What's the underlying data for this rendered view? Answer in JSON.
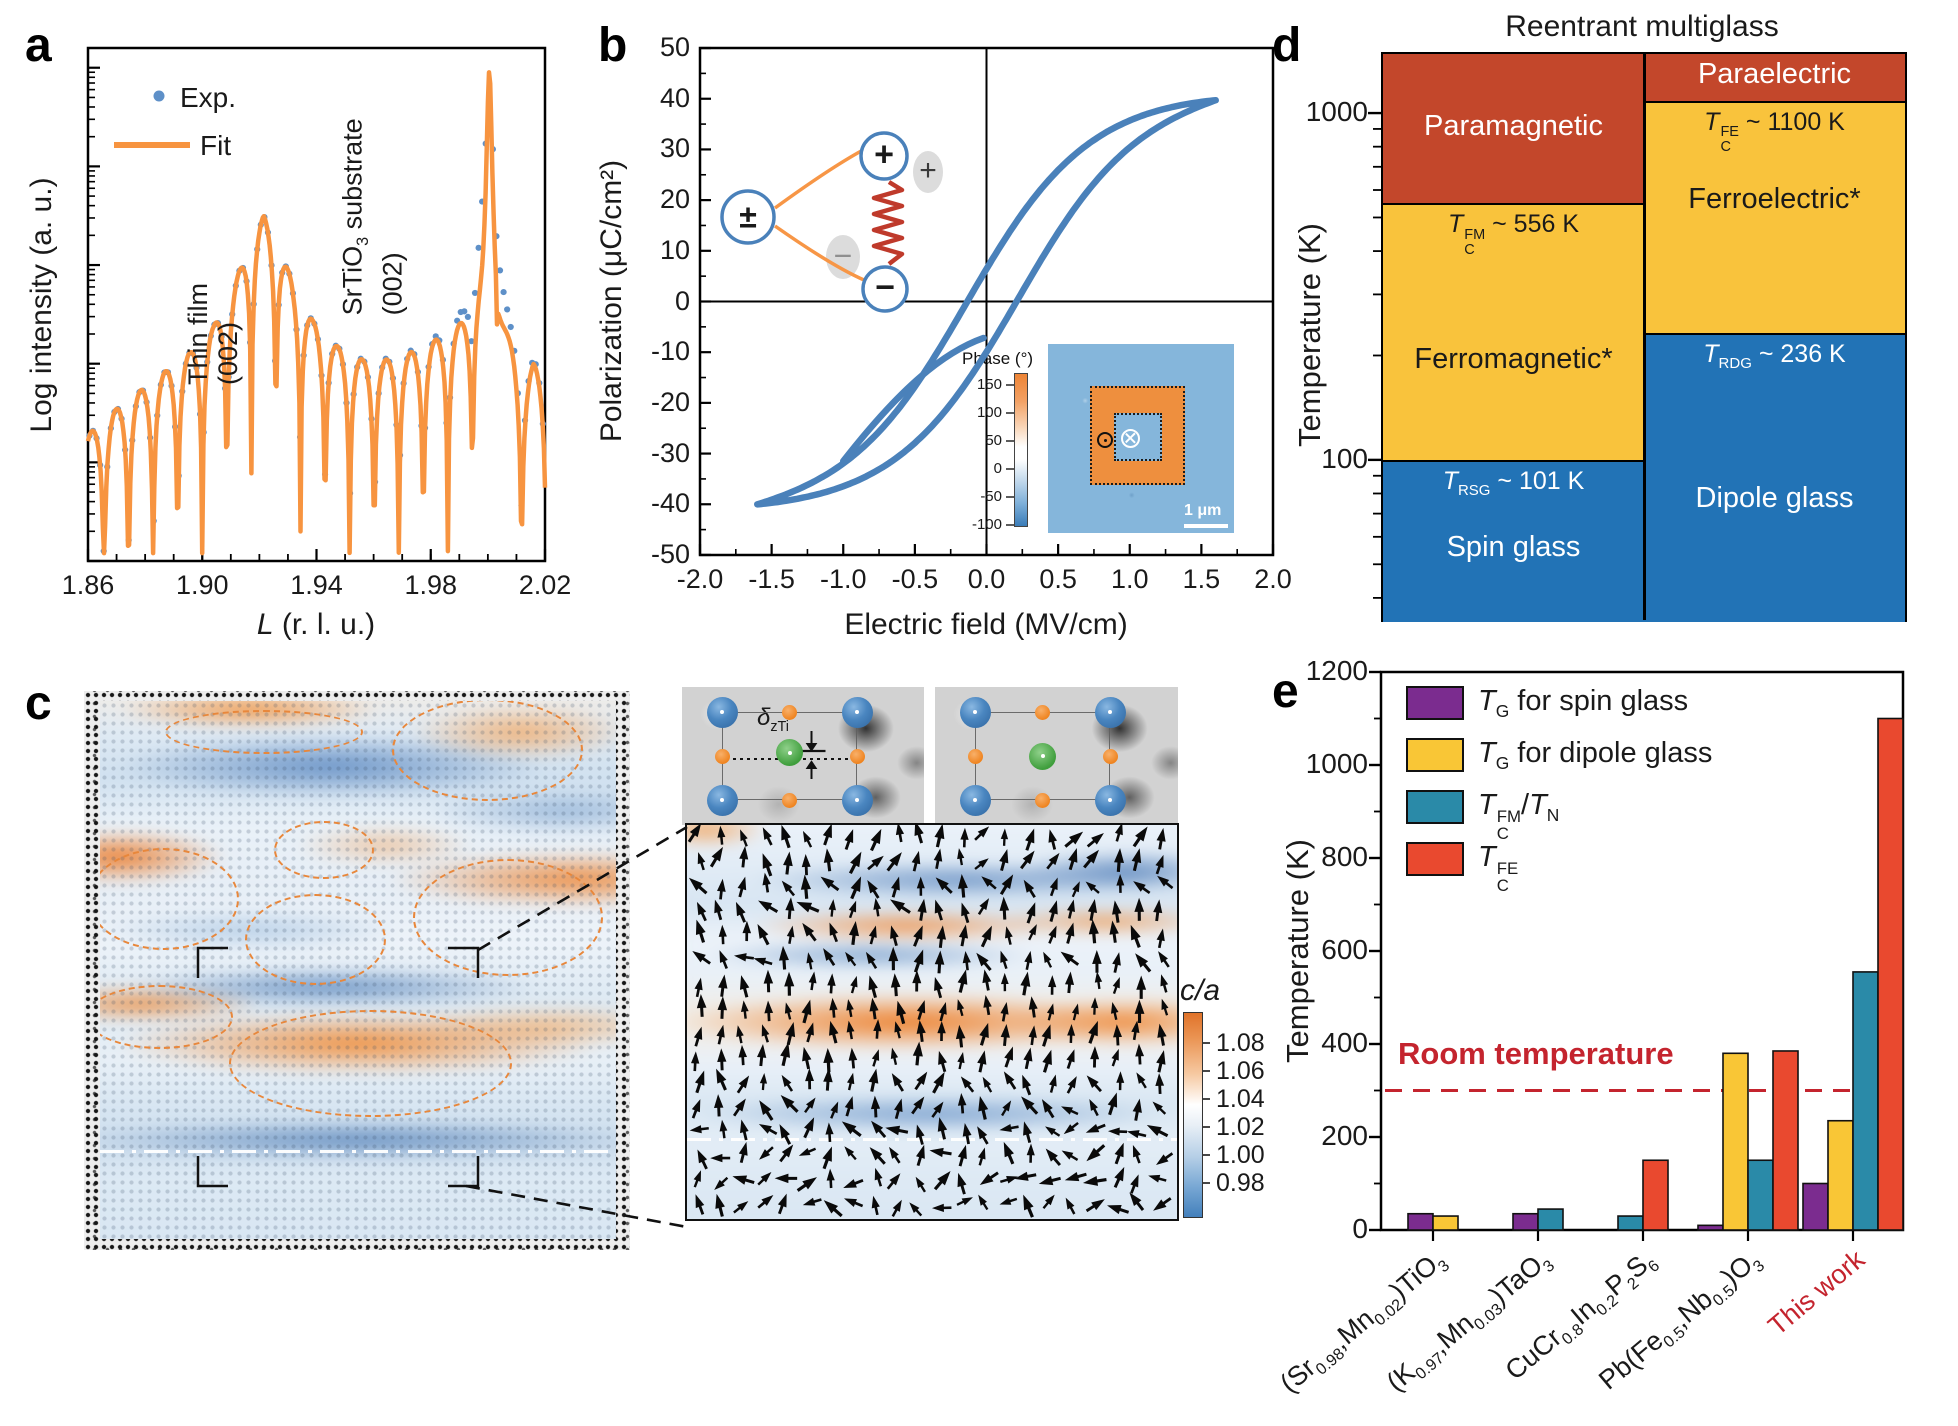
{
  "panel_labels": {
    "a": "a",
    "b": "b",
    "c": "c",
    "d": "d",
    "e": "e"
  },
  "colors": {
    "fit_orange": "#f79440",
    "exp_blue": "#5e90c8",
    "loop_blue": "#4a81ba",
    "map_orange": "#ec8233",
    "map_blue": "#3c7dbc",
    "d_red": "#c3472b",
    "d_yellow": "#f9c33c",
    "d_blue": "#2273b6",
    "e_purple": "#7b2c8f",
    "e_yellow": "#f9c636",
    "e_teal": "#2a8aa8",
    "e_red": "#e9492f",
    "room_red": "#c4242e"
  },
  "chart_data": [
    {
      "panel": "a",
      "type": "line",
      "xlabel": "L (r. l. u.)",
      "xlabel_tokens": [
        {
          "t": "L",
          "i": true
        },
        {
          "t": " (r. l. u.)"
        }
      ],
      "ylabel": "Log intensity (a. u.)",
      "xlim": [
        1.86,
        2.02
      ],
      "x_ticks": [
        "1.86",
        "1.90",
        "1.94",
        "1.98",
        "2.02"
      ],
      "y_axis": "log intensity, arbitrary units, ticks unlabeled",
      "legend": [
        {
          "label": "Exp.",
          "marker": "dot",
          "color": "#5e90c8"
        },
        {
          "label": "Fit",
          "marker": "line",
          "color": "#f79440"
        }
      ],
      "annotations": {
        "film": {
          "x": 1.9215,
          "tokens": [
            [
              {
                "t": "Thin film"
              }
            ],
            [
              {
                "t": "(002)"
              }
            ]
          ]
        },
        "substrate": {
          "x": 2.0,
          "tokens": [
            [
              {
                "t": "SrTiO"
              },
              {
                "sub": "3"
              },
              {
                "t": " substrate"
              }
            ],
            [
              {
                "t": "(002)"
              }
            ]
          ]
        }
      },
      "model": {
        "film_peak_center": 1.9215,
        "fringe_period": 0.0086,
        "fringe_depth": 1.3,
        "substrate_peak": {
          "center": 2.0005,
          "width": 0.0013,
          "height": 2.5
        },
        "exp_substrate_peak": {
          "width": 0.0028,
          "height": 2.1,
          "cap": 4.4
        },
        "envelope_log10": [
          [
            1.86,
            1.28
          ],
          [
            1.869,
            1.52
          ],
          [
            1.878,
            1.72
          ],
          [
            1.887,
            1.92
          ],
          [
            1.896,
            2.12
          ],
          [
            1.904,
            2.38
          ],
          [
            1.911,
            2.78
          ],
          [
            1.9165,
            3.22
          ],
          [
            1.9215,
            3.5
          ],
          [
            1.9265,
            3.22
          ],
          [
            1.932,
            2.8
          ],
          [
            1.939,
            2.42
          ],
          [
            1.947,
            2.18
          ],
          [
            1.956,
            2.04
          ],
          [
            1.965,
            2.04
          ],
          [
            1.974,
            2.12
          ],
          [
            1.983,
            2.25
          ],
          [
            1.991,
            2.38
          ],
          [
            1.997,
            2.48
          ],
          [
            2.003,
            2.48
          ],
          [
            2.009,
            2.05
          ],
          [
            2.0125,
            1.78
          ],
          [
            2.016,
            1.98
          ],
          [
            2.02,
            1.82
          ]
        ]
      }
    },
    {
      "panel": "b",
      "type": "line",
      "xlabel": "Electric field (MV/cm)",
      "ylabel": "Polarization (μC/cm²)",
      "xlim": [
        -2,
        2
      ],
      "ylim": [
        -50,
        50
      ],
      "x_tick_step": 0.5,
      "y_tick_step": 10,
      "loop": {
        "color": "#4a81ba",
        "saturation": 38,
        "linear_term": 2.2,
        "width": 0.82,
        "shift_up": 0.14,
        "shift_down": -0.22,
        "tip_field": 1.6,
        "virgin_start": [
          -0.02,
          -7.2
        ],
        "virgin_end": [
          -1.0,
          -31.5
        ]
      },
      "schematic": {
        "plusminus": "±",
        "plus": "+",
        "minus": "−",
        "ghost_plus": "+",
        "ghost_minus": "−"
      },
      "inset_pfm": {
        "colorbar_label": "Phase (°)",
        "colorbar_ticks": [
          "150",
          "100",
          "50",
          "0",
          "-50",
          "-100"
        ],
        "scale_bar": "1 μm",
        "symbol_out_of_plane": "dot-in-circle",
        "symbol_into_plane": "cross-in-circle"
      }
    },
    {
      "panel": "c",
      "type": "heatmap",
      "colorbar": {
        "label": "c/a",
        "label_tokens": [
          {
            "t": "c/a",
            "i": true
          }
        ],
        "ticks": [
          "1.08",
          "1.06",
          "1.04",
          "1.02",
          "1.00",
          "0.98"
        ]
      },
      "annotation_tokens": [
        {
          "t": "δ",
          "i": true
        },
        {
          "sub": "zTi"
        }
      ],
      "features": [
        "STEM c/a strain map with orange dashed ellipses marking polar nanoregions",
        "magnified polarization vector map with black arrows",
        "two perovskite unit-cell schematics over STEM background"
      ],
      "ellipses": [
        [
          65,
          9,
          194,
          40
        ],
        [
          292,
          -2,
          187,
          98
        ],
        [
          174,
          120,
          96,
          54
        ],
        [
          -12,
          147,
          147,
          98
        ],
        [
          145,
          193,
          137,
          87
        ],
        [
          313,
          158,
          186,
          113
        ],
        [
          -14,
          284,
          143,
          60
        ],
        [
          129,
          309,
          279,
          103
        ]
      ]
    },
    {
      "panel": "d",
      "type": "diagram",
      "title": "Reentrant multiglass",
      "ylabel": "Temperature (K)",
      "y_scale": "log",
      "y_ticks": [
        "1000",
        "100"
      ],
      "y_range_K": [
        35,
        1500
      ],
      "columns": [
        {
          "side": "magnetic",
          "regions": [
            {
              "name": "Paramagnetic",
              "T": [
                556,
                1500
              ],
              "color": "#c3472b",
              "text_color": "#ffffff",
              "dy": 0
            },
            {
              "name": "Ferromagnetic*",
              "T": [
                101,
                556
              ],
              "color": "#f9c33c",
              "text_color": "#1a1a1a",
              "dy": 30
            },
            {
              "name": "Spin glass",
              "T": [
                35,
                101
              ],
              "color": "#2273b6",
              "text_color": "#ffffff",
              "dy": 10
            }
          ],
          "boundaries": [
            {
              "T": 556,
              "tokens": [
                {
                  "t": "T",
                  "i": true
                },
                {
                  "ss": [
                    "FM",
                    "C"
                  ]
                },
                {
                  "t": " ~ 556 K"
                }
              ],
              "text_color": "#1a1a1a"
            },
            {
              "T": 101,
              "tokens": [
                {
                  "t": "T",
                  "i": true
                },
                {
                  "sub": "RSG"
                },
                {
                  "t": " ~ 101 K"
                }
              ],
              "text_color": "#ffffff"
            }
          ]
        },
        {
          "side": "electric",
          "regions": [
            {
              "name": "Paraelectric",
              "T": [
                1100,
                1500
              ],
              "color": "#c3472b",
              "text_color": "#ffffff",
              "dy": 0
            },
            {
              "name": "Ferroelectric*",
              "T": [
                236,
                1100
              ],
              "color": "#f9c33c",
              "text_color": "#1a1a1a",
              "dy": -15
            },
            {
              "name": "Dipole glass",
              "T": [
                35,
                236
              ],
              "color": "#2273b6",
              "text_color": "#ffffff",
              "dy": 25
            }
          ],
          "boundaries": [
            {
              "T": 1100,
              "tokens": [
                {
                  "t": "T",
                  "i": true
                },
                {
                  "ss": [
                    "FE",
                    "C"
                  ]
                },
                {
                  "t": " ~ 1100 K"
                }
              ],
              "text_color": "#1a1a1a"
            },
            {
              "T": 236,
              "tokens": [
                {
                  "t": "T",
                  "i": true
                },
                {
                  "sub": "RDG"
                },
                {
                  "t": " ~ 236 K"
                }
              ],
              "text_color": "#ffffff"
            }
          ]
        }
      ]
    },
    {
      "panel": "e",
      "type": "bar",
      "ylabel": "Temperature (K)",
      "ylim": [
        0,
        1200
      ],
      "y_tick_step": 200,
      "y_minor_step": 100,
      "categories": [
        "(Sr0.98,Mn0.02)TiO3",
        "(K0.97,Mn0.03)TaO3",
        "CuCr0.8In0.2P2S6",
        "Pb(Fe0.5,Nb0.5)O3",
        "This work"
      ],
      "category_tokens": [
        [
          {
            "t": "(Sr"
          },
          {
            "sub": "0.98"
          },
          {
            "t": ",Mn"
          },
          {
            "sub": "0.02"
          },
          {
            "t": ")TiO"
          },
          {
            "sub": "3"
          }
        ],
        [
          {
            "t": "(K"
          },
          {
            "sub": "0.97"
          },
          {
            "t": ",Mn"
          },
          {
            "sub": "0.03"
          },
          {
            "t": ")TaO"
          },
          {
            "sub": "3"
          }
        ],
        [
          {
            "t": "CuCr"
          },
          {
            "sub": "0.8"
          },
          {
            "t": "In"
          },
          {
            "sub": "0.2"
          },
          {
            "t": "P"
          },
          {
            "sub": "2"
          },
          {
            "t": "S"
          },
          {
            "sub": "6"
          }
        ],
        [
          {
            "t": "Pb(Fe"
          },
          {
            "sub": "0.5"
          },
          {
            "t": ",Nb"
          },
          {
            "sub": "0.5"
          },
          {
            "t": ")O"
          },
          {
            "sub": "3"
          }
        ],
        [
          {
            "t": "This work"
          }
        ]
      ],
      "category_colors": [
        "#1a1a1a",
        "#1a1a1a",
        "#1a1a1a",
        "#1a1a1a",
        "#c4242e"
      ],
      "series": [
        {
          "name": "TG for spin glass",
          "tokens": [
            {
              "t": "T",
              "i": true
            },
            {
              "sub": "G"
            },
            {
              "t": " for spin glass"
            }
          ],
          "color": "#7b2c8f",
          "values": [
            35,
            35,
            null,
            10,
            100
          ]
        },
        {
          "name": "TG for dipole glass",
          "tokens": [
            {
              "t": "T",
              "i": true
            },
            {
              "sub": "G"
            },
            {
              "t": " for dipole glass"
            }
          ],
          "color": "#f9c636",
          "values": [
            30,
            null,
            null,
            380,
            235
          ]
        },
        {
          "name": "TC_FM/TN",
          "tokens": [
            {
              "t": "T",
              "i": true
            },
            {
              "ss": [
                "FM",
                "C"
              ]
            },
            {
              "t": "/"
            },
            {
              "t": "T",
              "i": true
            },
            {
              "sub": "N"
            }
          ],
          "color": "#2a8aa8",
          "values": [
            null,
            45,
            30,
            150,
            555
          ]
        },
        {
          "name": "TC_FE",
          "tokens": [
            {
              "t": "T",
              "i": true
            },
            {
              "ss": [
                "FE",
                "C"
              ]
            }
          ],
          "color": "#e9492f",
          "values": [
            null,
            null,
            150,
            385,
            1100
          ]
        }
      ],
      "reference_line": {
        "label": "Room temperature",
        "value": 300,
        "color": "#c4242e"
      }
    }
  ]
}
